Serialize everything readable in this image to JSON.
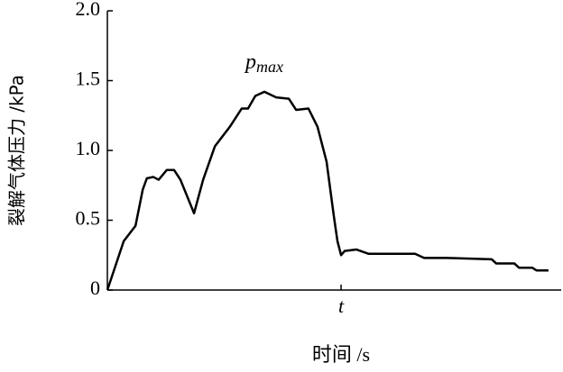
{
  "chart_data": {
    "type": "line",
    "y_label": "裂解气体压力 /kPa",
    "x_label": "时间 /s",
    "annotation": {
      "text": "p",
      "subscript": "max"
    },
    "xlim": [
      0,
      100
    ],
    "xticks": [
      {
        "value": 51.5,
        "label": "t"
      }
    ],
    "ylim": [
      0,
      2
    ],
    "yticks": [
      0,
      0.5,
      {
        "value": 1,
        "label": "1.0"
      },
      1.5,
      {
        "value": 2,
        "label": "2.0"
      }
    ],
    "grid": false,
    "series": [
      {
        "color": "#000000",
        "x": [
          0,
          3.6,
          6.2,
          7.8,
          8.7,
          10.1,
          11.3,
          13.1,
          14.7,
          16.1,
          19.1,
          21.1,
          23.7,
          27.0,
          29.6,
          31.0,
          32.6,
          34.6,
          35.9,
          37.2,
          40.0,
          41.6,
          44.3,
          46.3,
          48.3,
          49.9,
          50.7,
          51.5,
          52.3,
          54.9,
          57.5,
          67.8,
          69.8,
          74.8,
          84.7,
          85.7,
          89.7,
          90.7,
          93.6,
          94.6,
          97.2
        ],
        "values": [
          0,
          0.35,
          0.46,
          0.72,
          0.8,
          0.81,
          0.79,
          0.86,
          0.86,
          0.79,
          0.55,
          0.79,
          1.03,
          1.17,
          1.3,
          1.3,
          1.39,
          1.42,
          1.4,
          1.38,
          1.37,
          1.29,
          1.3,
          1.17,
          0.92,
          0.53,
          0.35,
          0.25,
          0.28,
          0.29,
          0.26,
          0.26,
          0.23,
          0.23,
          0.22,
          0.19,
          0.19,
          0.16,
          0.16,
          0.14,
          0.14
        ]
      }
    ]
  }
}
